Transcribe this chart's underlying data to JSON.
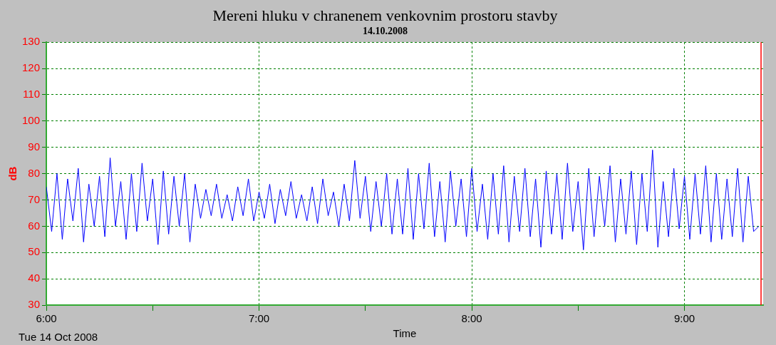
{
  "chart_data": {
    "type": "line",
    "title": "Mereni hluku v chranenem venkovnim prostoru stavby",
    "subtitle": "14.10.2008",
    "xlabel": "Time",
    "ylabel": "dB",
    "annotations": [
      "Tue 14 Oct 2008"
    ],
    "xlim": [
      6,
      9.37
    ],
    "xticks": [
      {
        "value": 6,
        "label": "6:00"
      },
      {
        "value": 6.5,
        "label": null
      },
      {
        "value": 7,
        "label": "7:00"
      },
      {
        "value": 7.5,
        "label": null
      },
      {
        "value": 8,
        "label": "8:00"
      },
      {
        "value": 8.5,
        "label": null
      },
      {
        "value": 9,
        "label": "9:00"
      }
    ],
    "ylim": [
      30,
      130
    ],
    "yticks": [
      30,
      40,
      50,
      60,
      70,
      80,
      90,
      100,
      110,
      120,
      130
    ],
    "grid": true,
    "legend": false,
    "marker": "none",
    "line_style": "solid",
    "ref_lines": [
      {
        "axis": "x",
        "value": 9.36,
        "label": null,
        "color": "#ff0000"
      }
    ],
    "x": [
      6,
      6.025,
      6.05,
      6.075,
      6.1,
      6.125,
      6.15,
      6.175,
      6.2,
      6.225,
      6.25,
      6.275,
      6.3,
      6.325,
      6.35,
      6.375,
      6.4,
      6.425,
      6.45,
      6.475,
      6.5,
      6.525,
      6.55,
      6.575,
      6.6,
      6.625,
      6.65,
      6.675,
      6.7,
      6.725,
      6.75,
      6.775,
      6.8,
      6.825,
      6.85,
      6.875,
      6.9,
      6.925,
      6.95,
      6.975,
      7,
      7.025,
      7.05,
      7.075,
      7.1,
      7.125,
      7.15,
      7.175,
      7.2,
      7.225,
      7.25,
      7.275,
      7.3,
      7.325,
      7.35,
      7.375,
      7.4,
      7.425,
      7.45,
      7.475,
      7.5,
      7.525,
      7.55,
      7.575,
      7.6,
      7.625,
      7.65,
      7.675,
      7.7,
      7.725,
      7.75,
      7.775,
      7.8,
      7.825,
      7.85,
      7.875,
      7.9,
      7.925,
      7.95,
      7.975,
      8,
      8.025,
      8.05,
      8.075,
      8.1,
      8.125,
      8.15,
      8.175,
      8.2,
      8.225,
      8.25,
      8.275,
      8.3,
      8.325,
      8.35,
      8.375,
      8.4,
      8.425,
      8.45,
      8.475,
      8.5,
      8.525,
      8.55,
      8.575,
      8.6,
      8.625,
      8.65,
      8.675,
      8.7,
      8.725,
      8.75,
      8.775,
      8.8,
      8.825,
      8.85,
      8.875,
      8.9,
      8.925,
      8.95,
      8.975,
      9,
      9.025,
      9.05,
      9.075,
      9.1,
      9.125,
      9.15,
      9.175,
      9.2,
      9.225,
      9.25,
      9.275,
      9.3,
      9.325,
      9.35
    ],
    "series": [
      {
        "color": "#0000ff",
        "values": [
          75,
          58,
          80,
          55,
          78,
          62,
          82,
          54,
          76,
          60,
          79,
          56,
          86,
          60,
          77,
          55,
          80,
          58,
          84,
          62,
          78,
          53,
          81,
          57,
          79,
          60,
          80,
          54,
          76,
          63,
          74,
          64,
          76,
          63,
          72,
          62,
          75,
          64,
          78,
          62,
          73,
          63,
          76,
          61,
          74,
          64,
          77,
          63,
          72,
          62,
          75,
          61,
          78,
          64,
          73,
          60,
          76,
          62,
          85,
          63,
          79,
          58,
          77,
          60,
          80,
          57,
          78,
          57,
          82,
          55,
          80,
          59,
          84,
          56,
          77,
          54,
          81,
          60,
          78,
          56,
          82,
          58,
          76,
          55,
          80,
          57,
          83,
          54,
          79,
          58,
          82,
          56,
          78,
          52,
          81,
          57,
          80,
          55,
          84,
          58,
          77,
          51,
          82,
          56,
          79,
          60,
          83,
          54,
          78,
          57,
          81,
          53,
          80,
          58,
          89,
          52,
          77,
          56,
          82,
          59,
          79,
          55,
          80,
          57,
          83,
          54,
          80,
          55,
          78,
          56,
          82,
          54,
          79,
          58,
          60
        ]
      }
    ]
  }
}
